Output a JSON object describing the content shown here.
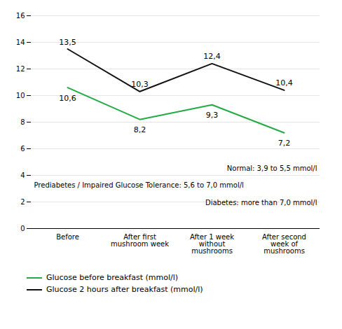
{
  "chart_data": {
    "type": "line",
    "categories": [
      "Before",
      "After first\nmushroom week",
      "After 1 week\nwithout\nmushrooms",
      "After second\nweek of\nmushrooms"
    ],
    "series": [
      {
        "name": "Glucose before breakfast (mmol/l)",
        "color": "#22aa44",
        "values": [
          10.6,
          8.2,
          9.3,
          7.2
        ],
        "value_labels": [
          "10,6",
          "8,2",
          "9,3",
          "7,2"
        ]
      },
      {
        "name": "Glucose 2 hours after breakfast (mmol/l)",
        "color": "#111111",
        "values": [
          13.5,
          10.3,
          12.4,
          10.4
        ],
        "value_labels": [
          "13,5",
          "10,3",
          "12,4",
          "10,4"
        ]
      }
    ],
    "ylim": [
      0,
      16
    ],
    "yticks": [
      0,
      2,
      4,
      6,
      8,
      10,
      12,
      14,
      16
    ],
    "grid": true,
    "data_labels": true,
    "legend": "bottom",
    "annotations": [
      "Normal: 3,9 to 5,5 mmol/l",
      "Prediabetes / Impaired Glucose Tolerance: 5,6 to 7,0 mmol/l",
      "Diabetes: more than 7,0 mmol/l"
    ]
  }
}
